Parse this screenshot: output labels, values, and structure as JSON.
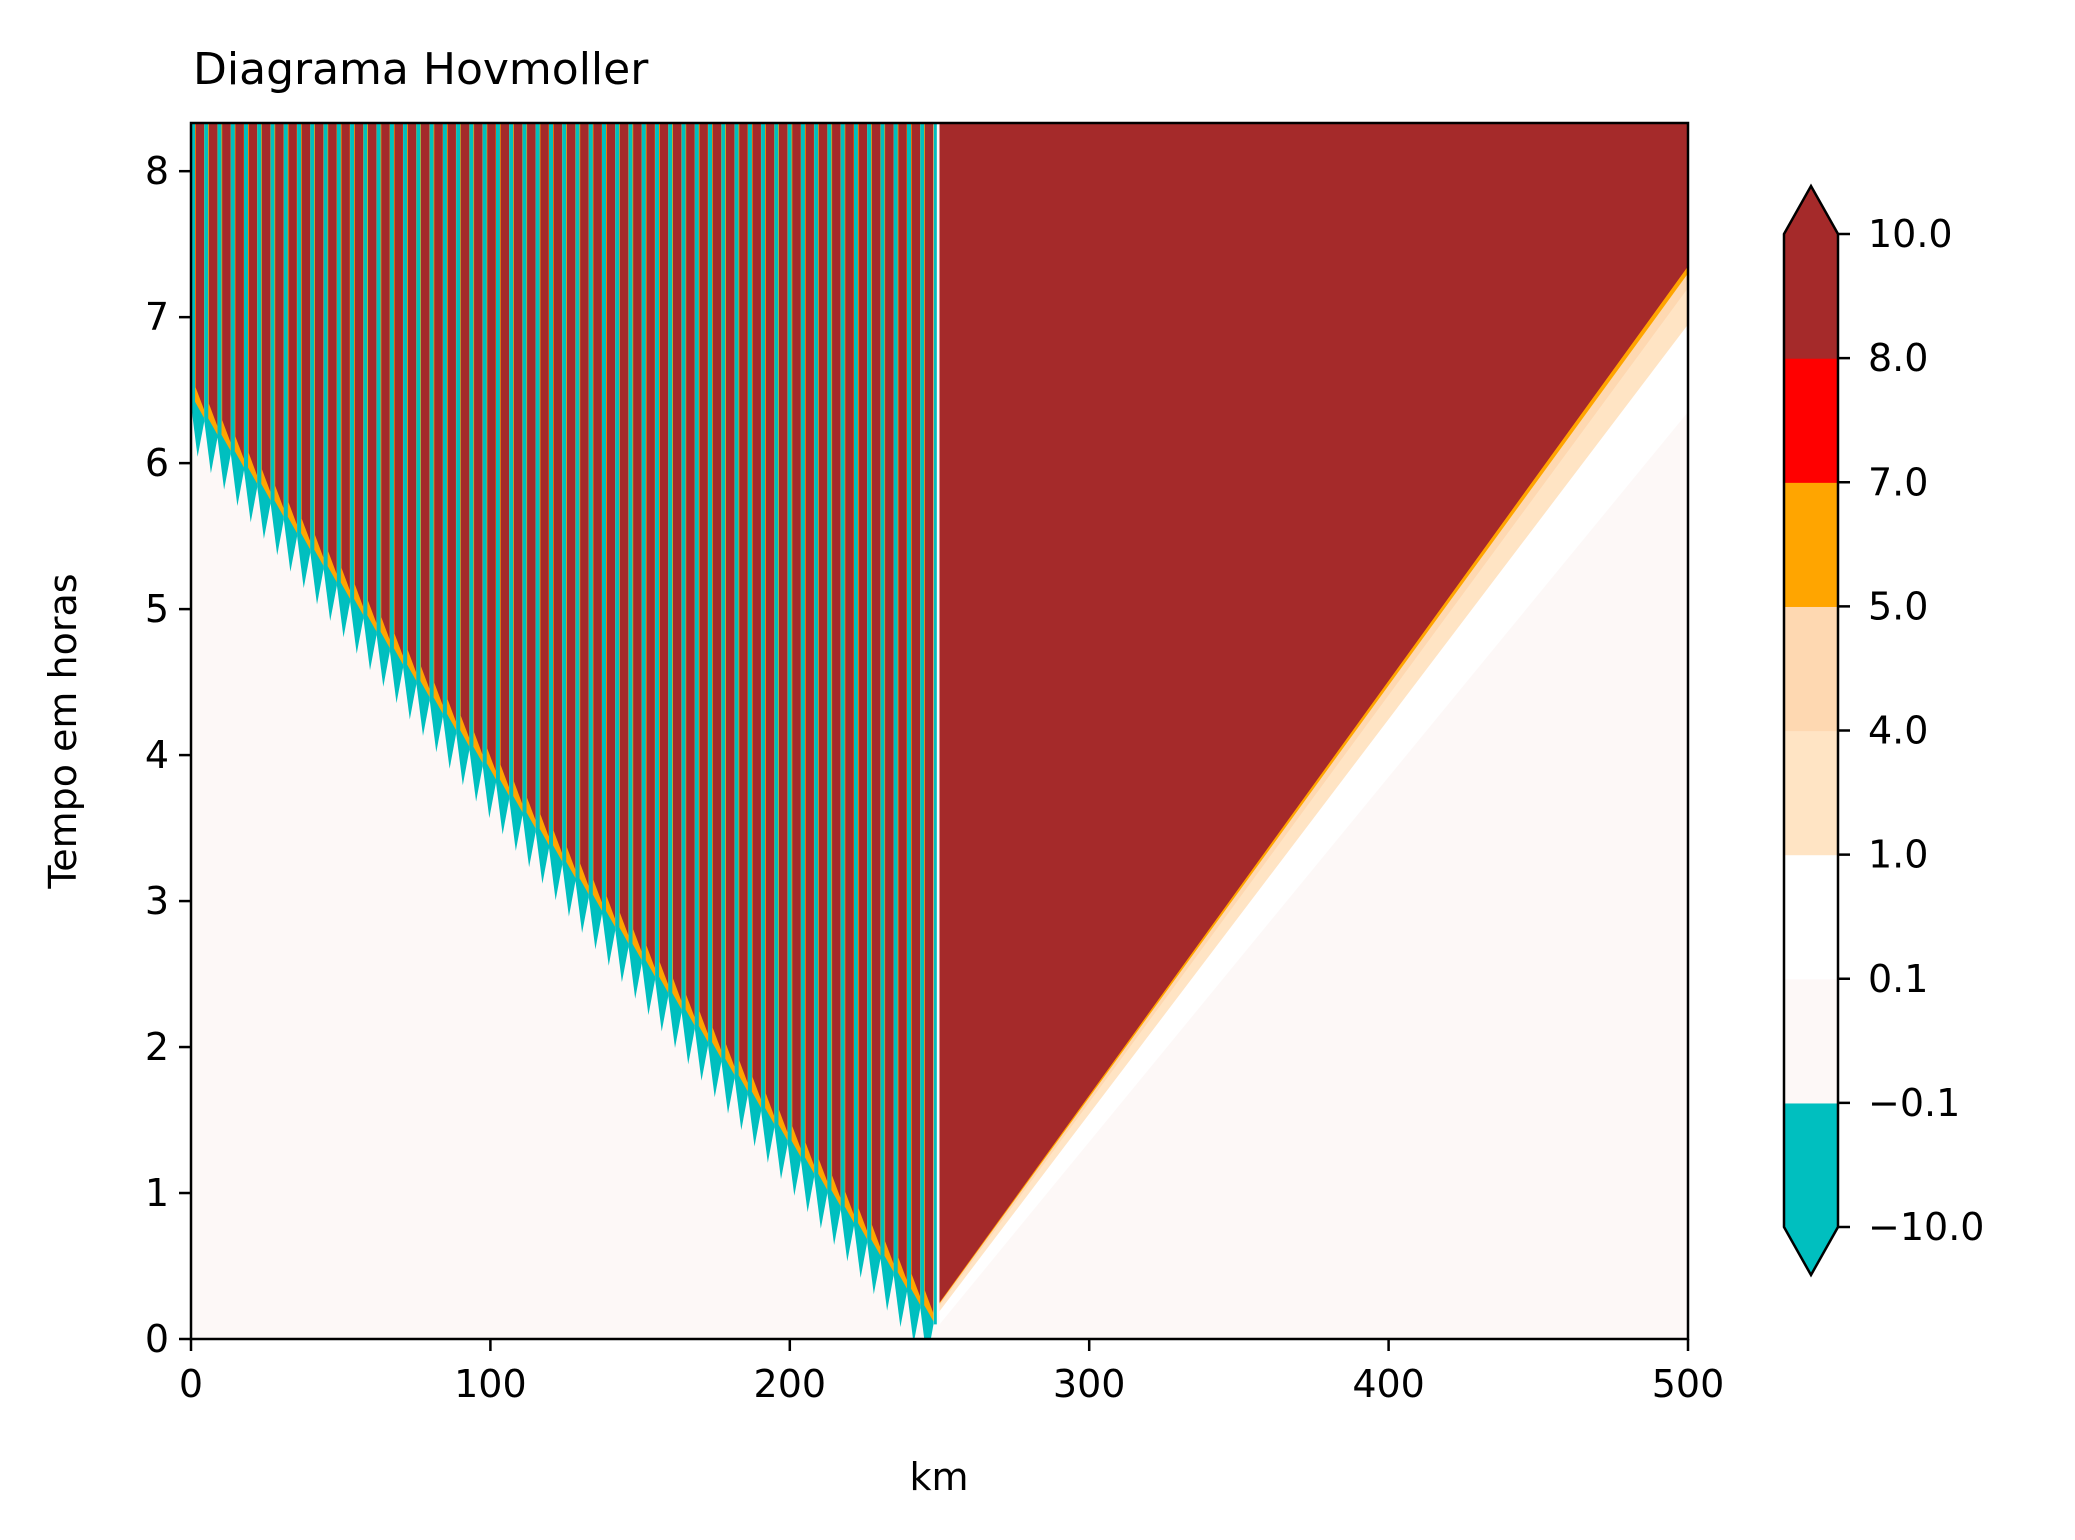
{
  "chart_data": {
    "type": "heatmap",
    "title": "Diagrama Hovmoller",
    "xlabel": "km",
    "ylabel": "Tempo em horas",
    "xlim": [
      0,
      500
    ],
    "ylim": [
      0,
      8.33
    ],
    "x_ticks": [
      "0",
      "100",
      "200",
      "300",
      "400",
      "500"
    ],
    "y_ticks": [
      "0",
      "1",
      "2",
      "3",
      "4",
      "5",
      "6",
      "7",
      "8"
    ],
    "colorbar": {
      "levels": [
        "−10.0",
        "−0.1",
        "0.1",
        "1.0",
        "4.0",
        "5.0",
        "7.0",
        "8.0",
        "10.0"
      ],
      "colors": [
        "#00bfbf",
        "#fdf8f7",
        "#ffffff",
        "#ffe4c4",
        "#fed8b1",
        "#ffa500",
        "#ff0000",
        "#a52a2a"
      ],
      "extend": "both"
    },
    "regions": [
      {
        "name": "background",
        "value_range": [
          -0.1,
          0.1
        ],
        "color": "#fdf8f7"
      },
      {
        "name": "high-value wedge",
        "x_range_km": [
          250,
          500
        ],
        "time_at_250km": 0.25,
        "time_at_500km": 7.35,
        "value_range": [
          8,
          10
        ],
        "color": "#a52a2a"
      },
      {
        "name": "oscillating wedge",
        "x_range_km": [
          0,
          248
        ],
        "time_at_248km": 0.1,
        "time_at_0km": 6.4,
        "stripe_count": 56,
        "colors": [
          "#a52a2a",
          "#00bfbf"
        ]
      }
    ]
  }
}
